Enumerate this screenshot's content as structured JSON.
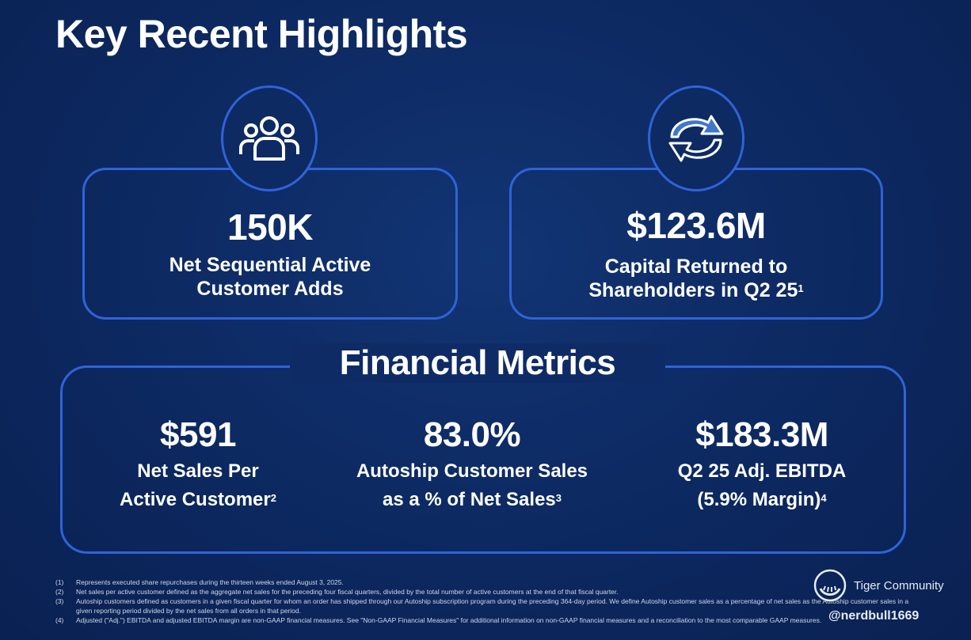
{
  "title": "Key Recent Highlights",
  "highlights": [
    {
      "icon": "people-group-icon",
      "value": "150K",
      "label_lines": [
        "Net Sequential Active",
        "Customer Adds"
      ],
      "superscript": ""
    },
    {
      "icon": "refresh-arrows-icon",
      "value": "$123.6M",
      "label_lines": [
        "Capital Returned to",
        "Shareholders in Q2 25"
      ],
      "superscript": "1"
    }
  ],
  "financial_metrics": {
    "title": "Financial Metrics",
    "items": [
      {
        "value": "$591",
        "label_lines": [
          "Net Sales Per",
          "Active Customer"
        ],
        "superscript": "2"
      },
      {
        "value": "83.0%",
        "label_lines": [
          "Autoship Customer Sales",
          "as a % of Net Sales"
        ],
        "superscript": "3"
      },
      {
        "value": "$183.3M",
        "label_lines": [
          "Q2 25 Adj. EBITDA",
          "(5.9% Margin)"
        ],
        "superscript": "4"
      }
    ]
  },
  "footnotes": [
    {
      "num": "(1)",
      "text": "Represents executed share repurchases during the thirteen weeks ended August 3, 2025."
    },
    {
      "num": "(2)",
      "text": "Net sales per active customer defined as the aggregate net sales for the preceding four fiscal quarters, divided by the total number of active customers at the end of that fiscal quarter."
    },
    {
      "num": "(3)",
      "text": "Autoship customers defined as customers in a given fiscal quarter for whom an order has shipped through our Autoship subscription program during the preceding 364-day period. We define Autoship customer sales as a percentage of net sales as the Autoship customer sales in a given reporting period divided by the net sales from all orders in that period."
    },
    {
      "num": "(4)",
      "text": "Adjusted (\"Adj.\") EBITDA and adjusted EBITDA margin are non-GAAP financial measures. See \"Non-GAAP Financial Measures\" for additional information on non-GAAP financial measures and a reconciliation to the most comparable GAAP measures."
    }
  ],
  "brand": {
    "community": "Tiger Community",
    "watermark": "@nerdbull1669"
  },
  "colors": {
    "background": "#0d2a63",
    "accent_border": "#2f63d8",
    "text": "#ffffff"
  }
}
